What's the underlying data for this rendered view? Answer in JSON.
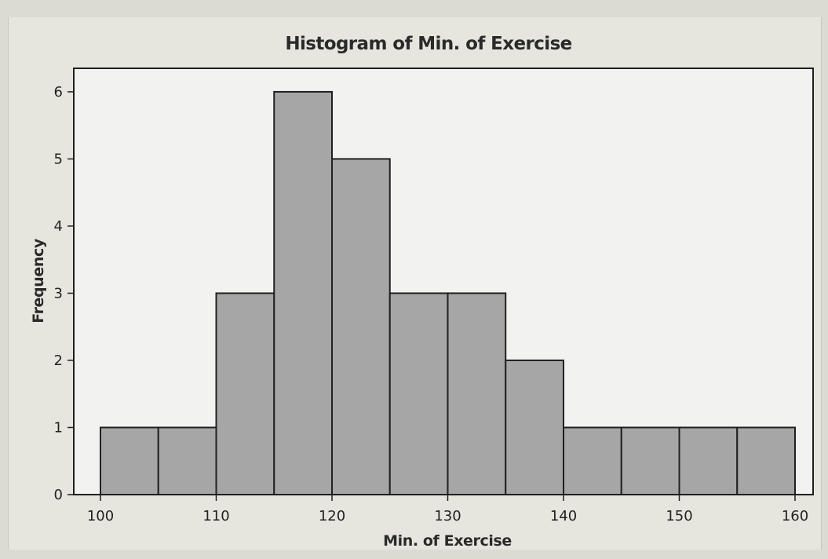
{
  "chart_data": {
    "type": "bar",
    "title": "Histogram of Min. of Exercise",
    "xlabel": "Min. of Exercise",
    "ylabel": "Frequency",
    "bin_edges": [
      100,
      105,
      110,
      115,
      120,
      125,
      130,
      135,
      140,
      145,
      150,
      155,
      160
    ],
    "values": [
      1,
      1,
      3,
      6,
      5,
      3,
      3,
      2,
      1,
      1,
      1,
      1
    ],
    "xlim": [
      100,
      160
    ],
    "ylim": [
      0,
      6.35
    ],
    "x_ticks": [
      100,
      110,
      120,
      130,
      140,
      150,
      160
    ],
    "y_ticks": [
      0,
      1,
      2,
      3,
      4,
      5,
      6
    ],
    "grid": false,
    "legend": "none",
    "colors": {
      "bar_fill": "#a6a6a6",
      "bar_stroke": "#202020",
      "plot_background": "#f2f2f0",
      "frame_background": "#e7e6de",
      "text": "#222222"
    }
  }
}
